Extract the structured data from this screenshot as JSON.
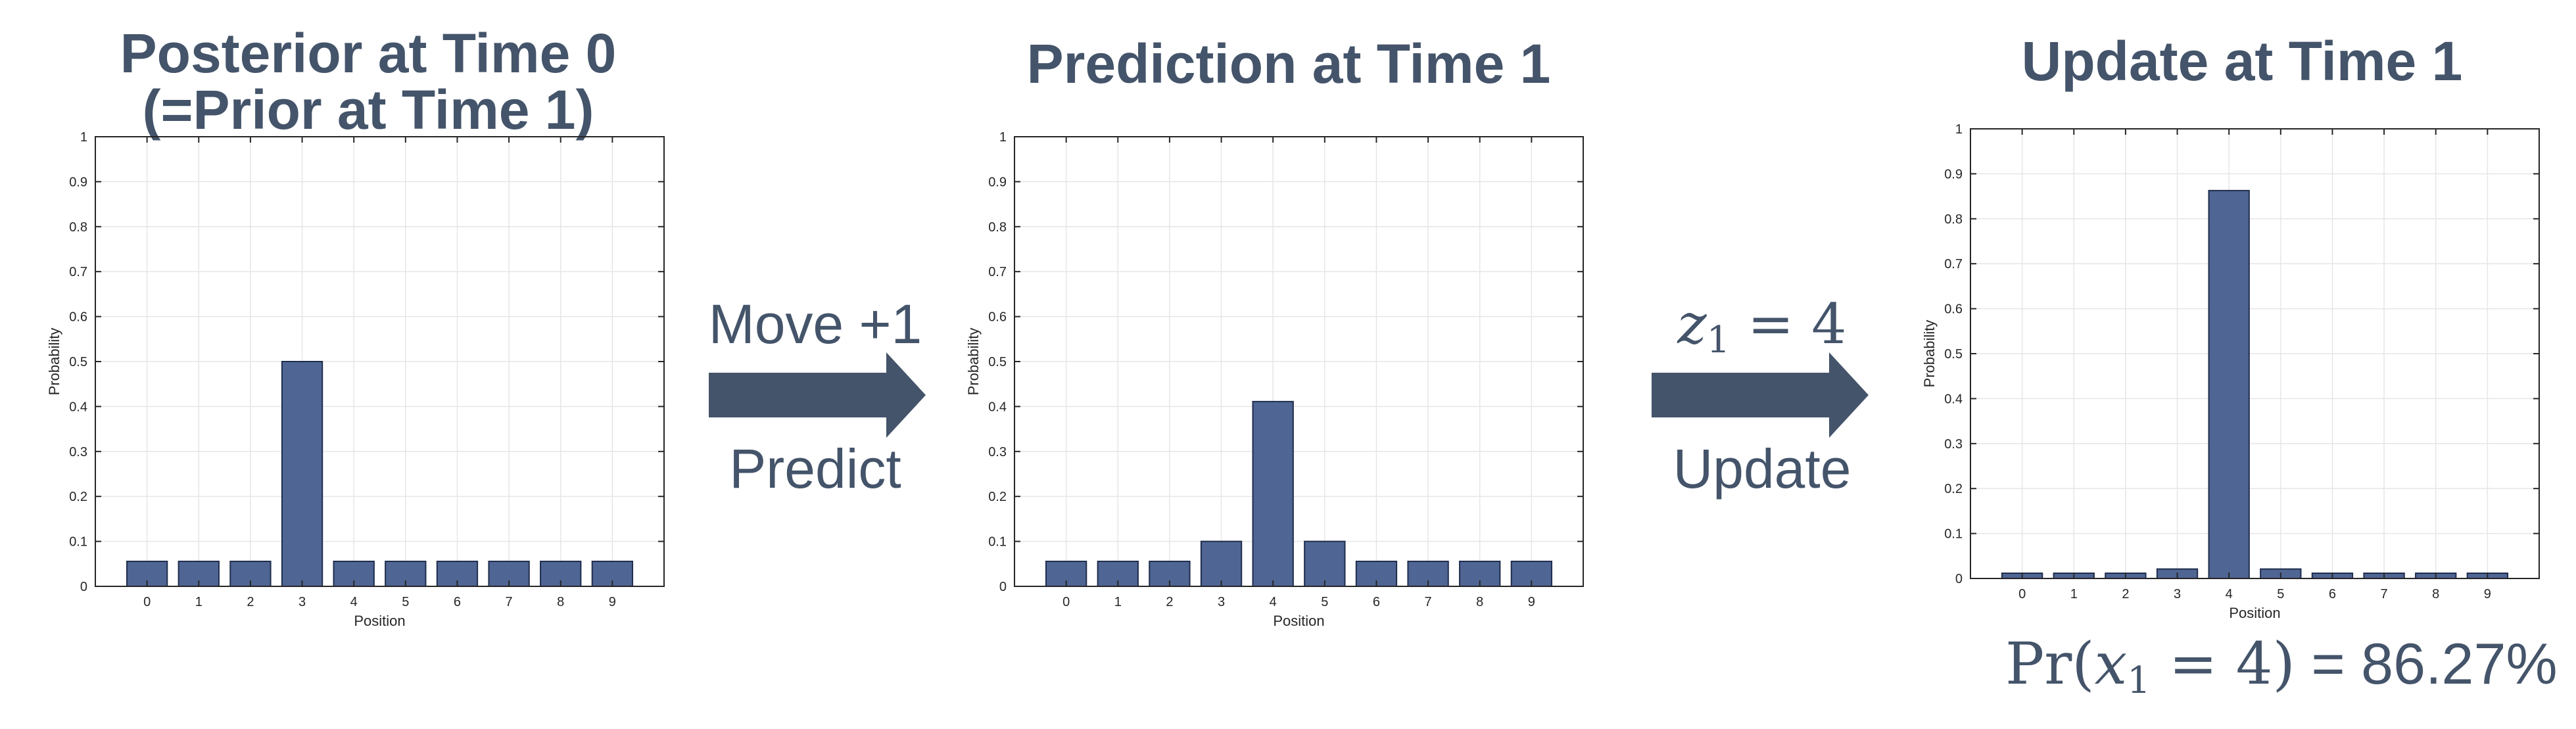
{
  "panels": [
    {
      "title_line1": "Posterior at Time 0",
      "title_line2": "(=Prior at Time 1)"
    },
    {
      "title_line1": "Prediction at Time 1"
    },
    {
      "title_line1": "Update at Time 1"
    }
  ],
  "steps": [
    {
      "top_text": "Move +1",
      "bottom_text": "Predict"
    },
    {
      "top_var": "z",
      "top_sub": "1",
      "top_rest": " = 4",
      "bottom_text": "Update"
    }
  ],
  "result": {
    "prefix": "Pr(",
    "var": "x",
    "sub": "1",
    "middle": " = 4)",
    "equals_value": " = 86.27%"
  },
  "colors": {
    "bar": "#4f6593",
    "bar_edge": "#1f2d4d",
    "text": "#44546a",
    "arrow": "#44546a"
  },
  "chart_data": [
    {
      "type": "bar",
      "categories": [
        "0",
        "1",
        "2",
        "3",
        "4",
        "5",
        "6",
        "7",
        "8",
        "9"
      ],
      "values": [
        0.0556,
        0.0556,
        0.0556,
        0.5,
        0.0556,
        0.0556,
        0.0556,
        0.0556,
        0.0556,
        0.0556
      ],
      "title": "Posterior at Time 0 (=Prior at Time 1)",
      "xlabel": "Position",
      "ylabel": "Probability",
      "ylim": [
        0,
        1
      ],
      "yticks": [
        "0",
        "0.1",
        "0.2",
        "0.3",
        "0.4",
        "0.5",
        "0.6",
        "0.7",
        "0.8",
        "0.9",
        "1"
      ],
      "grid": true
    },
    {
      "type": "bar",
      "categories": [
        "0",
        "1",
        "2",
        "3",
        "4",
        "5",
        "6",
        "7",
        "8",
        "9"
      ],
      "values": [
        0.0556,
        0.0556,
        0.0556,
        0.1,
        0.411,
        0.1,
        0.0556,
        0.0556,
        0.0556,
        0.0556
      ],
      "title": "Prediction at Time 1",
      "xlabel": "Position",
      "ylabel": "Probability",
      "ylim": [
        0,
        1
      ],
      "yticks": [
        "0",
        "0.1",
        "0.2",
        "0.3",
        "0.4",
        "0.5",
        "0.6",
        "0.7",
        "0.8",
        "0.9",
        "1"
      ],
      "grid": true
    },
    {
      "type": "bar",
      "categories": [
        "0",
        "1",
        "2",
        "3",
        "4",
        "5",
        "6",
        "7",
        "8",
        "9"
      ],
      "values": [
        0.0117,
        0.0117,
        0.0117,
        0.021,
        0.8627,
        0.021,
        0.0117,
        0.0117,
        0.0117,
        0.0117
      ],
      "title": "Update at Time 1",
      "xlabel": "Position",
      "ylabel": "Probability",
      "ylim": [
        0,
        1
      ],
      "yticks": [
        "0",
        "0.1",
        "0.2",
        "0.3",
        "0.4",
        "0.5",
        "0.6",
        "0.7",
        "0.8",
        "0.9",
        "1"
      ],
      "grid": true
    }
  ]
}
